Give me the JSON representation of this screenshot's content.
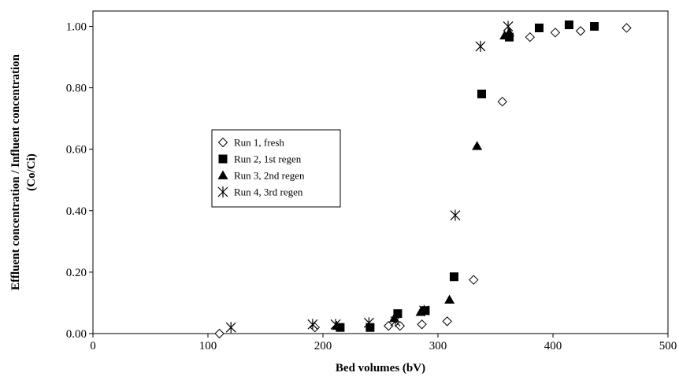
{
  "chart_data": {
    "type": "scatter",
    "title": "",
    "xlabel": "Bed volumes (bV)",
    "ylabel_lines": [
      "Effluent concentration / Influent concentration",
      "(Co/Ci)"
    ],
    "xlim": [
      0,
      500
    ],
    "ylim": [
      0,
      1.05
    ],
    "x_ticks": [
      0,
      100,
      200,
      300,
      400,
      500
    ],
    "x_tick_labels": [
      "0",
      "100",
      "200",
      "300",
      "400",
      "500"
    ],
    "y_ticks": [
      0,
      0.2,
      0.4,
      0.6,
      0.8,
      1.0
    ],
    "y_tick_labels": [
      "0.00",
      "0.20",
      "0.40",
      "0.60",
      "0.80",
      "1.00"
    ],
    "grid": false,
    "legend_position": "center-left",
    "series": [
      {
        "name": "Run 1, fresh",
        "marker": "diamond-open",
        "points": [
          [
            110,
            0.0
          ],
          [
            193,
            0.02
          ],
          [
            257,
            0.025
          ],
          [
            267,
            0.025
          ],
          [
            286,
            0.03
          ],
          [
            308,
            0.04
          ],
          [
            331,
            0.175
          ],
          [
            356,
            0.755
          ],
          [
            380,
            0.965
          ],
          [
            402,
            0.98
          ],
          [
            424,
            0.985
          ],
          [
            464,
            0.995
          ]
        ]
      },
      {
        "name": "Run 2, 1st regen",
        "marker": "square-filled",
        "points": [
          [
            215,
            0.02
          ],
          [
            241,
            0.02
          ],
          [
            265,
            0.065
          ],
          [
            289,
            0.075
          ],
          [
            314,
            0.185
          ],
          [
            338,
            0.78
          ],
          [
            362,
            0.965
          ],
          [
            388,
            0.995
          ],
          [
            414,
            1.005
          ],
          [
            436,
            1.0
          ]
        ]
      },
      {
        "name": "Run 3, 2nd regen",
        "marker": "triangle-filled",
        "points": [
          [
            212,
            0.025
          ],
          [
            262,
            0.05
          ],
          [
            285,
            0.07
          ],
          [
            310,
            0.11
          ],
          [
            334,
            0.61
          ],
          [
            358,
            0.97
          ],
          [
            362,
            0.98
          ]
        ]
      },
      {
        "name": "Run 4, 3rd regen",
        "marker": "asterisk",
        "points": [
          [
            120,
            0.02
          ],
          [
            191,
            0.03
          ],
          [
            211,
            0.03
          ],
          [
            240,
            0.035
          ],
          [
            263,
            0.04
          ],
          [
            288,
            0.075
          ],
          [
            315,
            0.385
          ],
          [
            337,
            0.935
          ],
          [
            361,
            1.0
          ]
        ]
      }
    ]
  }
}
